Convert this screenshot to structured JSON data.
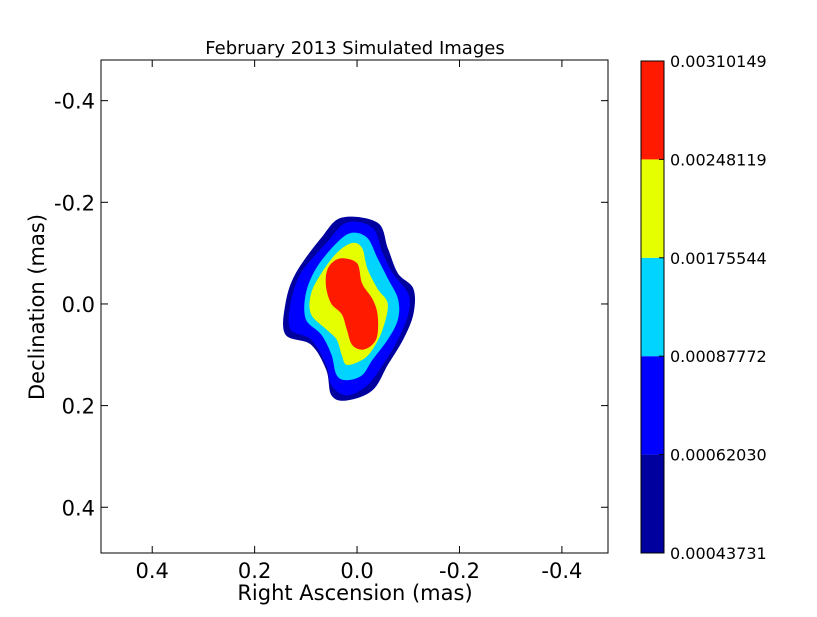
{
  "chart_data": {
    "type": "contour",
    "title": "February 2013 Simulated Images",
    "xlabel": "Right Ascension (mas)",
    "ylabel": "Declination (mas)",
    "xlim": [
      0.5,
      -0.49
    ],
    "ylim": [
      0.49,
      -0.48
    ],
    "x_ticks": [
      0.4,
      0.2,
      0.0,
      -0.2,
      -0.4
    ],
    "x_tick_labels": [
      "0.4",
      "0.2",
      "0.0",
      "-0.2",
      "-0.4"
    ],
    "y_ticks": [
      -0.4,
      -0.2,
      0.0,
      0.2,
      0.4
    ],
    "y_tick_labels": [
      "-0.4",
      "-0.2",
      "0.0",
      "0.2",
      "0.4"
    ],
    "grid": false,
    "colorbar": {
      "levels": [
        0.00043731,
        0.0006203,
        0.00087772,
        0.00175544,
        0.00248119,
        0.00310149
      ],
      "level_labels": [
        "0.00043731",
        "0.00062030",
        "0.00087772",
        "0.00175544",
        "0.00248119",
        "0.00310149"
      ],
      "colors": [
        "#00009e",
        "#0000ff",
        "#00d4ff",
        "#e6ff00",
        "#ff1a00"
      ]
    },
    "contours": [
      {
        "level": 0.00043731,
        "color": "#00009e",
        "outline": [
          [
            0.03,
            -0.17
          ],
          [
            -0.04,
            -0.16
          ],
          [
            -0.06,
            -0.11
          ],
          [
            -0.08,
            -0.06
          ],
          [
            -0.11,
            -0.03
          ],
          [
            -0.11,
            0.02
          ],
          [
            -0.09,
            0.07
          ],
          [
            -0.06,
            0.12
          ],
          [
            -0.03,
            0.17
          ],
          [
            0.02,
            0.19
          ],
          [
            0.05,
            0.18
          ],
          [
            0.06,
            0.13
          ],
          [
            0.09,
            0.08
          ],
          [
            0.14,
            0.06
          ],
          [
            0.14,
            0.0
          ],
          [
            0.12,
            -0.06
          ],
          [
            0.07,
            -0.13
          ]
        ]
      },
      {
        "level": 0.0006203,
        "color": "#0000ff",
        "outline": [
          [
            0.02,
            -0.16
          ],
          [
            -0.03,
            -0.15
          ],
          [
            -0.05,
            -0.1
          ],
          [
            -0.07,
            -0.06
          ],
          [
            -0.1,
            -0.02
          ],
          [
            -0.1,
            0.02
          ],
          [
            -0.08,
            0.07
          ],
          [
            -0.05,
            0.12
          ],
          [
            -0.02,
            0.16
          ],
          [
            0.02,
            0.18
          ],
          [
            0.05,
            0.16
          ],
          [
            0.06,
            0.12
          ],
          [
            0.09,
            0.07
          ],
          [
            0.13,
            0.05
          ],
          [
            0.13,
            0.0
          ],
          [
            0.11,
            -0.06
          ],
          [
            0.06,
            -0.12
          ]
        ]
      },
      {
        "level": 0.00087772,
        "color": "#00d4ff",
        "outline": [
          [
            0.01,
            -0.14
          ],
          [
            -0.02,
            -0.13
          ],
          [
            -0.04,
            -0.09
          ],
          [
            -0.06,
            -0.05
          ],
          [
            -0.08,
            -0.01
          ],
          [
            -0.08,
            0.03
          ],
          [
            -0.06,
            0.07
          ],
          [
            -0.03,
            0.11
          ],
          [
            -0.01,
            0.14
          ],
          [
            0.02,
            0.15
          ],
          [
            0.04,
            0.14
          ],
          [
            0.05,
            0.1
          ],
          [
            0.07,
            0.06
          ],
          [
            0.1,
            0.03
          ],
          [
            0.1,
            -0.02
          ],
          [
            0.08,
            -0.07
          ],
          [
            0.04,
            -0.12
          ]
        ]
      },
      {
        "level": 0.00175544,
        "color": "#e6ff00",
        "outline": [
          [
            0.01,
            -0.12
          ],
          [
            -0.01,
            -0.11
          ],
          [
            -0.02,
            -0.07
          ],
          [
            -0.04,
            -0.03
          ],
          [
            -0.06,
            0.0
          ],
          [
            -0.05,
            0.05
          ],
          [
            -0.03,
            0.09
          ],
          [
            -0.01,
            0.11
          ],
          [
            0.02,
            0.12
          ],
          [
            0.03,
            0.1
          ],
          [
            0.04,
            0.07
          ],
          [
            0.06,
            0.05
          ],
          [
            0.09,
            0.02
          ],
          [
            0.09,
            -0.02
          ],
          [
            0.07,
            -0.06
          ],
          [
            0.04,
            -0.1
          ]
        ]
      },
      {
        "level": 0.00248119,
        "color": "#ff1a00",
        "outline": [
          [
            0.03,
            -0.09
          ],
          [
            0.0,
            -0.08
          ],
          [
            -0.01,
            -0.04
          ],
          [
            -0.03,
            -0.01
          ],
          [
            -0.04,
            0.02
          ],
          [
            -0.04,
            0.06
          ],
          [
            -0.03,
            0.08
          ],
          [
            -0.01,
            0.09
          ],
          [
            0.01,
            0.08
          ],
          [
            0.02,
            0.05
          ],
          [
            0.03,
            0.02
          ],
          [
            0.05,
            0.0
          ],
          [
            0.06,
            -0.03
          ],
          [
            0.06,
            -0.06
          ],
          [
            0.05,
            -0.08
          ]
        ]
      }
    ]
  }
}
